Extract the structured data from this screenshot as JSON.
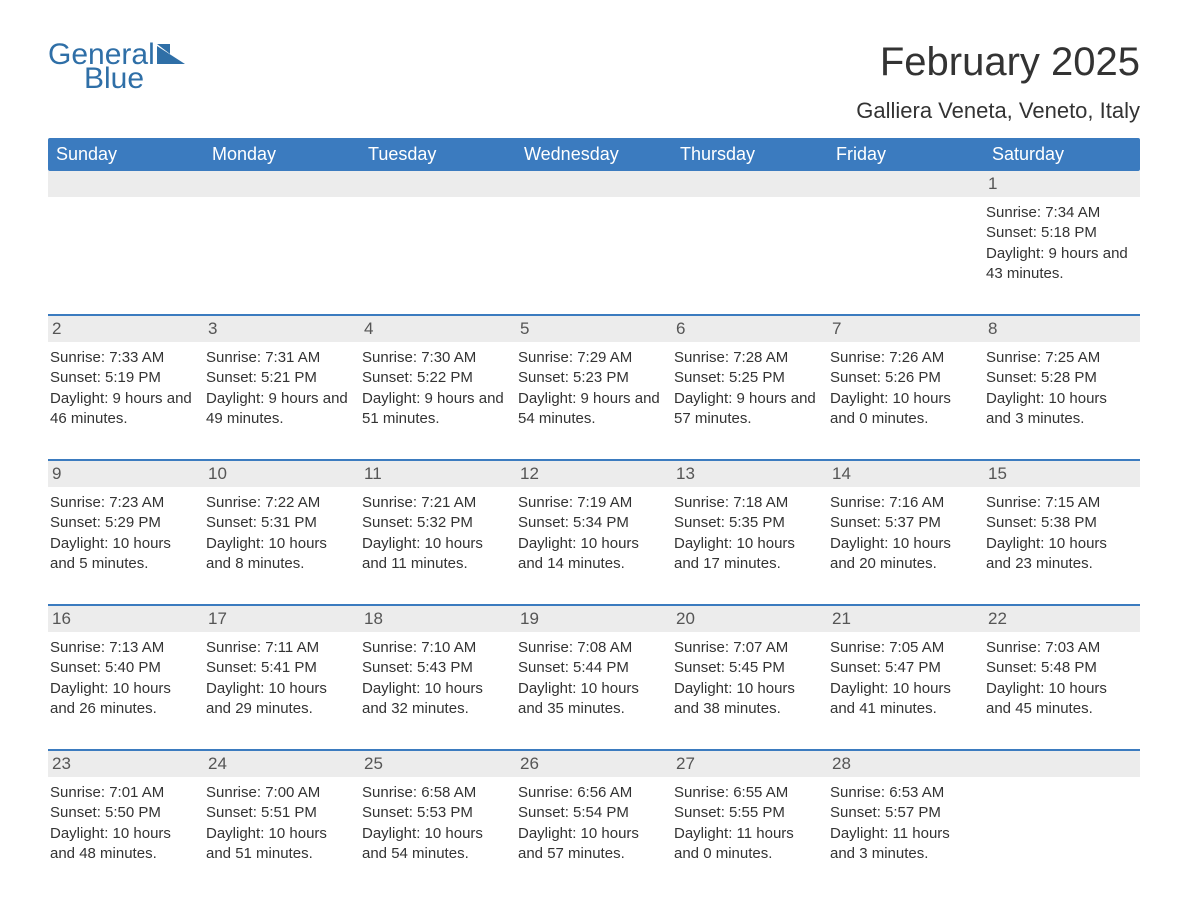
{
  "logo": {
    "word1": "General",
    "word2": "Blue",
    "icon_color": "#2f6fa7"
  },
  "title": "February 2025",
  "location": "Galliera Veneta, Veneto, Italy",
  "accent_color": "#3b7bbf",
  "gray_bg": "#ececec",
  "text_color": "#333333",
  "day_headers": [
    "Sunday",
    "Monday",
    "Tuesday",
    "Wednesday",
    "Thursday",
    "Friday",
    "Saturday"
  ],
  "weeks": [
    [
      {
        "day": "",
        "sunrise": "",
        "sunset": "",
        "daylight": ""
      },
      {
        "day": "",
        "sunrise": "",
        "sunset": "",
        "daylight": ""
      },
      {
        "day": "",
        "sunrise": "",
        "sunset": "",
        "daylight": ""
      },
      {
        "day": "",
        "sunrise": "",
        "sunset": "",
        "daylight": ""
      },
      {
        "day": "",
        "sunrise": "",
        "sunset": "",
        "daylight": ""
      },
      {
        "day": "",
        "sunrise": "",
        "sunset": "",
        "daylight": ""
      },
      {
        "day": "1",
        "sunrise": "Sunrise: 7:34 AM",
        "sunset": "Sunset: 5:18 PM",
        "daylight": "Daylight: 9 hours and 43 minutes."
      }
    ],
    [
      {
        "day": "2",
        "sunrise": "Sunrise: 7:33 AM",
        "sunset": "Sunset: 5:19 PM",
        "daylight": "Daylight: 9 hours and 46 minutes."
      },
      {
        "day": "3",
        "sunrise": "Sunrise: 7:31 AM",
        "sunset": "Sunset: 5:21 PM",
        "daylight": "Daylight: 9 hours and 49 minutes."
      },
      {
        "day": "4",
        "sunrise": "Sunrise: 7:30 AM",
        "sunset": "Sunset: 5:22 PM",
        "daylight": "Daylight: 9 hours and 51 minutes."
      },
      {
        "day": "5",
        "sunrise": "Sunrise: 7:29 AM",
        "sunset": "Sunset: 5:23 PM",
        "daylight": "Daylight: 9 hours and 54 minutes."
      },
      {
        "day": "6",
        "sunrise": "Sunrise: 7:28 AM",
        "sunset": "Sunset: 5:25 PM",
        "daylight": "Daylight: 9 hours and 57 minutes."
      },
      {
        "day": "7",
        "sunrise": "Sunrise: 7:26 AM",
        "sunset": "Sunset: 5:26 PM",
        "daylight": "Daylight: 10 hours and 0 minutes."
      },
      {
        "day": "8",
        "sunrise": "Sunrise: 7:25 AM",
        "sunset": "Sunset: 5:28 PM",
        "daylight": "Daylight: 10 hours and 3 minutes."
      }
    ],
    [
      {
        "day": "9",
        "sunrise": "Sunrise: 7:23 AM",
        "sunset": "Sunset: 5:29 PM",
        "daylight": "Daylight: 10 hours and 5 minutes."
      },
      {
        "day": "10",
        "sunrise": "Sunrise: 7:22 AM",
        "sunset": "Sunset: 5:31 PM",
        "daylight": "Daylight: 10 hours and 8 minutes."
      },
      {
        "day": "11",
        "sunrise": "Sunrise: 7:21 AM",
        "sunset": "Sunset: 5:32 PM",
        "daylight": "Daylight: 10 hours and 11 minutes."
      },
      {
        "day": "12",
        "sunrise": "Sunrise: 7:19 AM",
        "sunset": "Sunset: 5:34 PM",
        "daylight": "Daylight: 10 hours and 14 minutes."
      },
      {
        "day": "13",
        "sunrise": "Sunrise: 7:18 AM",
        "sunset": "Sunset: 5:35 PM",
        "daylight": "Daylight: 10 hours and 17 minutes."
      },
      {
        "day": "14",
        "sunrise": "Sunrise: 7:16 AM",
        "sunset": "Sunset: 5:37 PM",
        "daylight": "Daylight: 10 hours and 20 minutes."
      },
      {
        "day": "15",
        "sunrise": "Sunrise: 7:15 AM",
        "sunset": "Sunset: 5:38 PM",
        "daylight": "Daylight: 10 hours and 23 minutes."
      }
    ],
    [
      {
        "day": "16",
        "sunrise": "Sunrise: 7:13 AM",
        "sunset": "Sunset: 5:40 PM",
        "daylight": "Daylight: 10 hours and 26 minutes."
      },
      {
        "day": "17",
        "sunrise": "Sunrise: 7:11 AM",
        "sunset": "Sunset: 5:41 PM",
        "daylight": "Daylight: 10 hours and 29 minutes."
      },
      {
        "day": "18",
        "sunrise": "Sunrise: 7:10 AM",
        "sunset": "Sunset: 5:43 PM",
        "daylight": "Daylight: 10 hours and 32 minutes."
      },
      {
        "day": "19",
        "sunrise": "Sunrise: 7:08 AM",
        "sunset": "Sunset: 5:44 PM",
        "daylight": "Daylight: 10 hours and 35 minutes."
      },
      {
        "day": "20",
        "sunrise": "Sunrise: 7:07 AM",
        "sunset": "Sunset: 5:45 PM",
        "daylight": "Daylight: 10 hours and 38 minutes."
      },
      {
        "day": "21",
        "sunrise": "Sunrise: 7:05 AM",
        "sunset": "Sunset: 5:47 PM",
        "daylight": "Daylight: 10 hours and 41 minutes."
      },
      {
        "day": "22",
        "sunrise": "Sunrise: 7:03 AM",
        "sunset": "Sunset: 5:48 PM",
        "daylight": "Daylight: 10 hours and 45 minutes."
      }
    ],
    [
      {
        "day": "23",
        "sunrise": "Sunrise: 7:01 AM",
        "sunset": "Sunset: 5:50 PM",
        "daylight": "Daylight: 10 hours and 48 minutes."
      },
      {
        "day": "24",
        "sunrise": "Sunrise: 7:00 AM",
        "sunset": "Sunset: 5:51 PM",
        "daylight": "Daylight: 10 hours and 51 minutes."
      },
      {
        "day": "25",
        "sunrise": "Sunrise: 6:58 AM",
        "sunset": "Sunset: 5:53 PM",
        "daylight": "Daylight: 10 hours and 54 minutes."
      },
      {
        "day": "26",
        "sunrise": "Sunrise: 6:56 AM",
        "sunset": "Sunset: 5:54 PM",
        "daylight": "Daylight: 10 hours and 57 minutes."
      },
      {
        "day": "27",
        "sunrise": "Sunrise: 6:55 AM",
        "sunset": "Sunset: 5:55 PM",
        "daylight": "Daylight: 11 hours and 0 minutes."
      },
      {
        "day": "28",
        "sunrise": "Sunrise: 6:53 AM",
        "sunset": "Sunset: 5:57 PM",
        "daylight": "Daylight: 11 hours and 3 minutes."
      },
      {
        "day": "",
        "sunrise": "",
        "sunset": "",
        "daylight": ""
      }
    ]
  ]
}
